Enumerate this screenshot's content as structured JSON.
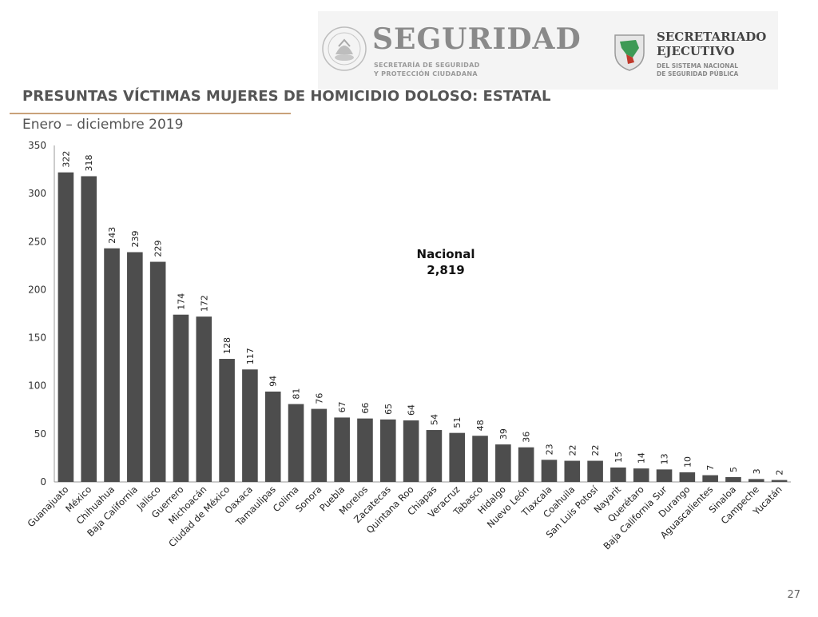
{
  "header": {
    "seal_text": "ESTADOS UNIDOS MEXICANOS",
    "seguridad_title": "SEGURIDAD",
    "seguridad_subtitle": "SECRETARÍA DE SEGURIDAD\nY PROTECCIÓN CIUDADANA",
    "sesnsp_title": "SECRETARIADO\nEJECUTIVO",
    "sesnsp_subtitle": "DEL SISTEMA NACIONAL\nDE SEGURIDAD PÚBLICA"
  },
  "page": {
    "heading": "PRESUNTAS VÍCTIMAS MUJERES DE HOMICIDIO DOLOSO: ESTATAL",
    "period": "Enero – diciembre 2019",
    "national_label": "Nacional",
    "national_value": "2,819",
    "page_number": "27"
  },
  "colors": {
    "bar": "#4d4d4d",
    "accent_line": "#c9a27a",
    "header_band": "#f4f4f4"
  },
  "chart_data": {
    "type": "bar",
    "categories": [
      "Guanajuato",
      "México",
      "Chihuahua",
      "Baja California",
      "Jalisco",
      "Guerrero",
      "Michoacán",
      "Ciudad de México",
      "Oaxaca",
      "Tamaulipas",
      "Colima",
      "Sonora",
      "Puebla",
      "Morelos",
      "Zacatecas",
      "Quintana Roo",
      "Chiapas",
      "Veracruz",
      "Tabasco",
      "Hidalgo",
      "Nuevo León",
      "Tlaxcala",
      "Coahuila",
      "San Luis Potosí",
      "Nayarit",
      "Querétaro",
      "Baja California Sur",
      "Durango",
      "Aguascalientes",
      "Sinaloa",
      "Campeche",
      "Yucatán"
    ],
    "values": [
      322,
      318,
      243,
      239,
      229,
      174,
      172,
      128,
      117,
      94,
      81,
      76,
      67,
      66,
      65,
      64,
      54,
      51,
      48,
      39,
      36,
      23,
      22,
      22,
      15,
      14,
      13,
      10,
      7,
      5,
      3,
      2
    ],
    "yticks": [
      0,
      50,
      100,
      150,
      200,
      250,
      300,
      350
    ],
    "ylim": [
      0,
      350
    ],
    "title": "",
    "xlabel": "",
    "ylabel": "",
    "grid": false,
    "data_labels": true
  }
}
